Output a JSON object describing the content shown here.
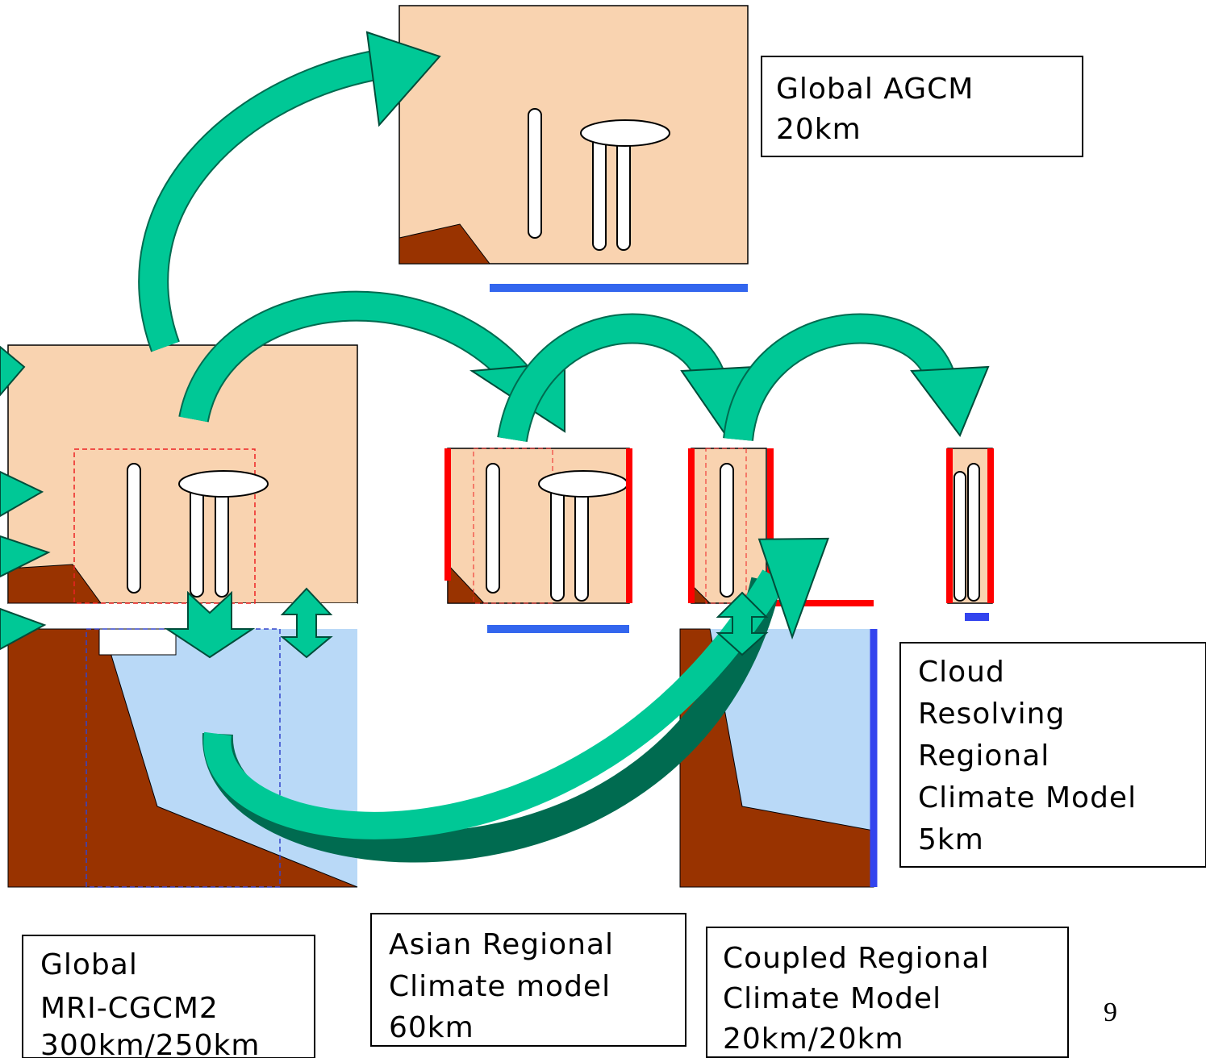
{
  "labels": [
    {
      "lines": [
        "Global AGCM",
        "20km"
      ]
    },
    {
      "lines": [
        "Cloud",
        "Resolving",
        "Regional",
        "Climate Model",
        "5km"
      ]
    },
    {
      "lines": [
        "Global",
        "MRI-CGCM2",
        "300km/250km"
      ]
    },
    {
      "lines": [
        "Asian Regional",
        "Climate model",
        "60km"
      ]
    },
    {
      "lines": [
        "Coupled Regional",
        "Climate Model",
        "20km/20km"
      ]
    }
  ],
  "page_number": "9"
}
